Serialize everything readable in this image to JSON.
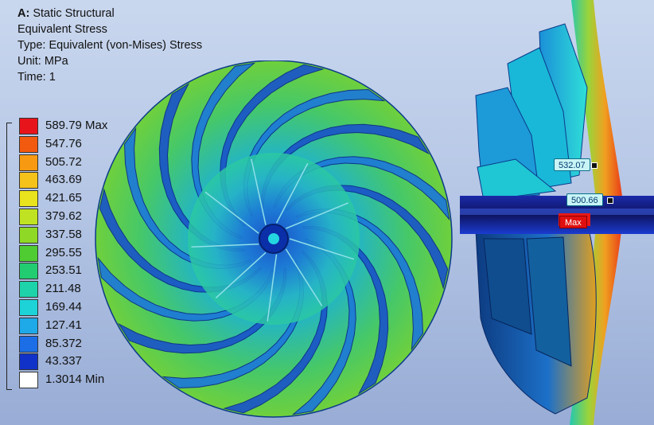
{
  "info": {
    "prefix": "A:",
    "system": "Static Structural",
    "result_name": "Equivalent Stress",
    "type_line": "Type: Equivalent (von-Mises) Stress",
    "unit_line": "Unit: MPa",
    "time_line": "Time: 1"
  },
  "legend": {
    "entries": [
      {
        "label": "589.79 Max",
        "color": "#e8141c"
      },
      {
        "label": "547.76",
        "color": "#f25a10"
      },
      {
        "label": "505.72",
        "color": "#f79a12"
      },
      {
        "label": "463.69",
        "color": "#f5c21a"
      },
      {
        "label": "421.65",
        "color": "#e8e31c"
      },
      {
        "label": "379.62",
        "color": "#bfe322"
      },
      {
        "label": "337.58",
        "color": "#8fd926"
      },
      {
        "label": "295.55",
        "color": "#4fcc32"
      },
      {
        "label": "253.51",
        "color": "#22cc70"
      },
      {
        "label": "211.48",
        "color": "#1dd3aa"
      },
      {
        "label": "169.44",
        "color": "#1dd3d8"
      },
      {
        "label": "127.41",
        "color": "#1ea9e8"
      },
      {
        "label": "85.372",
        "color": "#1c6ee6"
      },
      {
        "label": "43.337",
        "color": "#1132c8"
      },
      {
        "label": "1.3014 Min",
        "color": "#ffffff"
      }
    ]
  },
  "probes": {
    "probe_1": "532.07",
    "probe_2": "500.66",
    "max_tag": "Max"
  },
  "model": {
    "blade_count": 16,
    "splitter_count": 9
  }
}
